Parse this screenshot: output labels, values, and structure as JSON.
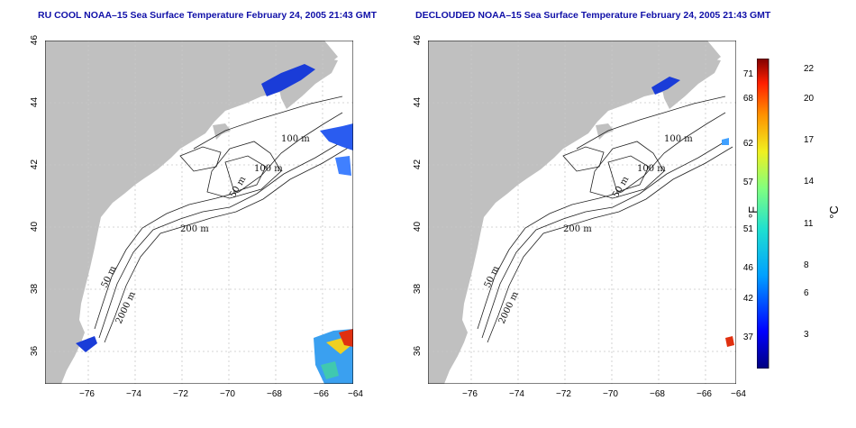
{
  "panels": [
    {
      "title": "RU COOL NOAA–15 Sea Surface Temperature February 24, 2005 21:43 GMT",
      "contour_labels": [
        "100 m",
        "100 m",
        "50 m",
        "200 m",
        "50 m",
        "2000 m"
      ]
    },
    {
      "title": "DECLOUDED NOAA–15 Sea Surface Temperature February 24, 2005 21:43 GMT",
      "contour_labels": [
        "100 m",
        "100 m",
        "50 m",
        "200 m",
        "50 m",
        "2000 m"
      ]
    }
  ],
  "axes": {
    "lon_ticks": [
      "−76",
      "−74",
      "−72",
      "−70",
      "−68",
      "−66",
      "−64"
    ],
    "lat_ticks": [
      "36",
      "38",
      "40",
      "42",
      "44",
      "46"
    ]
  },
  "colorbar": {
    "f_label": "°F",
    "c_label": "°C",
    "f_ticks": [
      "71",
      "68",
      "62",
      "57",
      "51",
      "46",
      "42",
      "37"
    ],
    "c_ticks": [
      "22",
      "20",
      "17",
      "14",
      "11",
      "8",
      "6",
      "3"
    ]
  },
  "colors": {
    "land": "#c0c0c0",
    "ocean": "#ffffff",
    "title": "#1010a8",
    "cold": "#1a3cd8",
    "warm": "#e03010"
  }
}
